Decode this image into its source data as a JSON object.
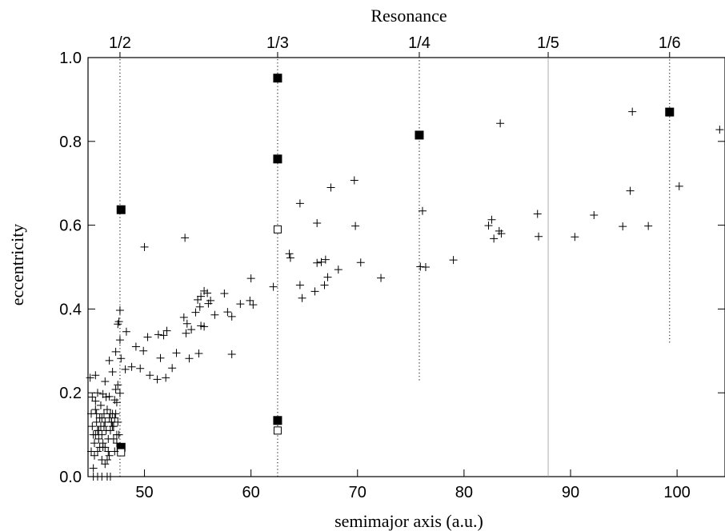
{
  "chart_data": {
    "type": "scatter",
    "top_title": "Resonance",
    "xlabel": "semimajor axis (a.u.)",
    "ylabel": "eccentricity",
    "xlim": [
      44.7,
      104.5
    ],
    "ylim": [
      0,
      1
    ],
    "x_ticks": [
      50,
      60,
      70,
      80,
      90,
      100
    ],
    "y_ticks": [
      "0.0",
      "0.2",
      "0.4",
      "0.6",
      "0.8",
      "1.0"
    ],
    "y_tick_values": [
      0,
      0.2,
      0.4,
      0.6,
      0.8,
      1.0
    ],
    "grid": false,
    "resonances": [
      {
        "label": "1/2",
        "a": 47.7,
        "line_from_e": 0.0,
        "line_to_e": 1.0,
        "style": "dotted"
      },
      {
        "label": "1/3",
        "a": 62.5,
        "line_from_e": 0.0,
        "line_to_e": 1.0,
        "style": "dotted"
      },
      {
        "label": "1/4",
        "a": 75.8,
        "line_from_e": 0.23,
        "line_to_e": 1.0,
        "style": "dotted"
      },
      {
        "label": "1/5",
        "a": 87.9,
        "line_from_e": 0.0,
        "line_to_e": 1.0,
        "style": "solid-light"
      },
      {
        "label": "1/6",
        "a": 99.3,
        "line_from_e": 0.32,
        "line_to_e": 1.0,
        "style": "dotted"
      }
    ],
    "series": [
      {
        "marker": "filled-square",
        "points": [
          [
            47.8,
            0.637
          ],
          [
            62.5,
            0.951
          ],
          [
            62.5,
            0.758
          ],
          [
            62.5,
            0.134
          ],
          [
            75.8,
            0.815
          ],
          [
            99.3,
            0.87
          ],
          [
            47.8,
            0.07
          ]
        ]
      },
      {
        "marker": "open-square",
        "points": [
          [
            62.5,
            0.59
          ],
          [
            62.5,
            0.11
          ],
          [
            47.8,
            0.058
          ]
        ]
      },
      {
        "marker": "plus",
        "points": [
          [
            50.0,
            0.548
          ],
          [
            53.8,
            0.57
          ],
          [
            64.6,
            0.652
          ],
          [
            67.5,
            0.69
          ],
          [
            69.7,
            0.707
          ],
          [
            66.2,
            0.605
          ],
          [
            69.8,
            0.598
          ],
          [
            83.4,
            0.843
          ],
          [
            95.8,
            0.871
          ],
          [
            104.0,
            0.828
          ],
          [
            95.6,
            0.682
          ],
          [
            100.2,
            0.693
          ],
          [
            86.9,
            0.627
          ],
          [
            92.2,
            0.624
          ],
          [
            82.3,
            0.599
          ],
          [
            82.6,
            0.613
          ],
          [
            82.8,
            0.568
          ],
          [
            83.3,
            0.586
          ],
          [
            83.5,
            0.58
          ],
          [
            87.0,
            0.573
          ],
          [
            90.4,
            0.572
          ],
          [
            94.9,
            0.597
          ],
          [
            97.3,
            0.598
          ],
          [
            76.1,
            0.634
          ],
          [
            75.9,
            0.501
          ],
          [
            76.4,
            0.5
          ],
          [
            79.0,
            0.517
          ],
          [
            72.2,
            0.474
          ],
          [
            70.3,
            0.511
          ],
          [
            68.2,
            0.494
          ],
          [
            66.2,
            0.51
          ],
          [
            66.6,
            0.512
          ],
          [
            67.0,
            0.518
          ],
          [
            67.2,
            0.476
          ],
          [
            66.9,
            0.457
          ],
          [
            66.0,
            0.442
          ],
          [
            64.6,
            0.457
          ],
          [
            64.8,
            0.426
          ],
          [
            63.6,
            0.532
          ],
          [
            63.7,
            0.522
          ],
          [
            62.1,
            0.453
          ],
          [
            60.0,
            0.473
          ],
          [
            59.9,
            0.42
          ],
          [
            60.2,
            0.41
          ],
          [
            59.0,
            0.412
          ],
          [
            58.2,
            0.382
          ],
          [
            57.5,
            0.437
          ],
          [
            57.8,
            0.393
          ],
          [
            56.0,
            0.413
          ],
          [
            55.6,
            0.443
          ],
          [
            55.9,
            0.438
          ],
          [
            55.3,
            0.43
          ],
          [
            55.0,
            0.422
          ],
          [
            55.2,
            0.405
          ],
          [
            54.8,
            0.392
          ],
          [
            56.2,
            0.42
          ],
          [
            54.0,
            0.365
          ],
          [
            53.7,
            0.38
          ],
          [
            53.9,
            0.342
          ],
          [
            55.3,
            0.36
          ],
          [
            55.6,
            0.358
          ],
          [
            56.6,
            0.386
          ],
          [
            54.4,
            0.351
          ],
          [
            55.1,
            0.294
          ],
          [
            54.2,
            0.282
          ],
          [
            53.0,
            0.295
          ],
          [
            52.6,
            0.259
          ],
          [
            52.1,
            0.348
          ],
          [
            51.8,
            0.337
          ],
          [
            51.3,
            0.339
          ],
          [
            51.5,
            0.283
          ],
          [
            50.3,
            0.333
          ],
          [
            49.2,
            0.31
          ],
          [
            49.9,
            0.3
          ],
          [
            50.5,
            0.242
          ],
          [
            51.2,
            0.232
          ],
          [
            52.0,
            0.236
          ],
          [
            48.8,
            0.262
          ],
          [
            49.6,
            0.258
          ],
          [
            48.2,
            0.256
          ],
          [
            47.8,
            0.282
          ],
          [
            47.7,
            0.326
          ],
          [
            48.3,
            0.346
          ],
          [
            47.5,
            0.364
          ],
          [
            47.6,
            0.37
          ],
          [
            47.7,
            0.397
          ],
          [
            47.3,
            0.298
          ],
          [
            47.0,
            0.25
          ],
          [
            47.3,
            0.208
          ],
          [
            47.7,
            0.199
          ],
          [
            47.5,
            0.219
          ],
          [
            46.7,
            0.277
          ],
          [
            46.3,
            0.227
          ],
          [
            45.4,
            0.242
          ],
          [
            44.9,
            0.236
          ],
          [
            45.6,
            0.2
          ],
          [
            46.1,
            0.197
          ],
          [
            46.7,
            0.191
          ],
          [
            47.2,
            0.183
          ],
          [
            47.4,
            0.177
          ],
          [
            58.2,
            0.292
          ],
          [
            45.0,
            0.15
          ],
          [
            45.1,
            0.12
          ],
          [
            45.2,
            0.1
          ],
          [
            45.3,
            0.08
          ],
          [
            45.4,
            0.16
          ],
          [
            45.5,
            0.13
          ],
          [
            45.6,
            0.11
          ],
          [
            45.7,
            0.09
          ],
          [
            45.8,
            0.14
          ],
          [
            45.9,
            0.12
          ],
          [
            46.0,
            0.1
          ],
          [
            46.1,
            0.07
          ],
          [
            46.2,
            0.15
          ],
          [
            46.3,
            0.13
          ],
          [
            46.4,
            0.11
          ],
          [
            46.5,
            0.16
          ],
          [
            46.6,
            0.09
          ],
          [
            46.7,
            0.14
          ],
          [
            46.8,
            0.15
          ],
          [
            46.9,
            0.13
          ],
          [
            47.0,
            0.15
          ],
          [
            47.1,
            0.12
          ],
          [
            47.2,
            0.14
          ],
          [
            47.3,
            0.15
          ],
          [
            47.4,
            0.1
          ],
          [
            47.5,
            0.13
          ],
          [
            45.3,
            0.05
          ],
          [
            45.6,
            0.06
          ],
          [
            46.0,
            0.04
          ],
          [
            46.3,
            0.03
          ],
          [
            46.6,
            0.06
          ],
          [
            46.1,
            0.08
          ],
          [
            45.9,
            0.17
          ],
          [
            45.4,
            0.18
          ],
          [
            46.4,
            0.19
          ],
          [
            45.0,
            0.06
          ],
          [
            45.2,
            0.02
          ],
          [
            45.7,
            0.11
          ],
          [
            46.2,
            0.12
          ],
          [
            46.8,
            0.11
          ],
          [
            47.1,
            0.09
          ],
          [
            47.6,
            0.1
          ],
          [
            47.2,
            0.06
          ],
          [
            46.5,
            0.04
          ],
          [
            45.1,
            0.19
          ],
          [
            45.5,
            0.15
          ],
          [
            46.0,
            0.14
          ],
          [
            46.9,
            0.13
          ],
          [
            47.4,
            0.08
          ],
          [
            45.8,
            0.07
          ],
          [
            46.3,
            0.07
          ],
          [
            46.7,
            0.05
          ],
          [
            45.4,
            0.1
          ],
          [
            45.2,
            0.0
          ],
          [
            45.6,
            0.0
          ],
          [
            46.0,
            0.0
          ],
          [
            46.5,
            0.0
          ],
          [
            46.8,
            0.0
          ],
          [
            47.0,
            0.12
          ]
        ]
      }
    ]
  }
}
